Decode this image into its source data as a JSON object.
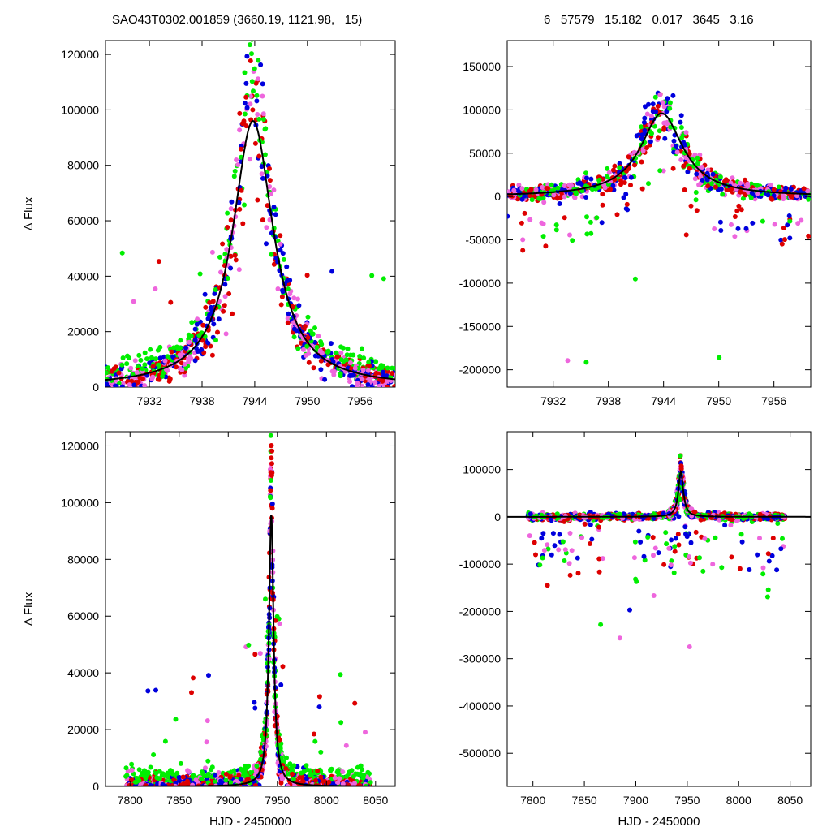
{
  "header": {
    "left": "SAO43T0302.001859 (3660.19, 1121.98,   15)",
    "right": "6   57579   15.182   0.017   3645   3.16"
  },
  "colors": {
    "series": [
      "#0000dd",
      "#dd0000",
      "#ee66dd",
      "#00ee00"
    ],
    "model": "#000000"
  },
  "chart_data": [
    {
      "id": "top-left",
      "type": "scatter",
      "title": "",
      "xlabel": "",
      "ylabel": "Δ Flux",
      "xlim": [
        7927,
        7960
      ],
      "ylim": [
        0,
        125000
      ],
      "xticks": [
        7932,
        7938,
        7944,
        7950,
        7956
      ],
      "yticks": [
        0,
        20000,
        40000,
        60000,
        80000,
        100000,
        120000
      ],
      "grid": false,
      "model": {
        "type": "lorentzian",
        "t0": 7943.8,
        "amplitude": 96000,
        "width": 2.8
      }
    },
    {
      "id": "top-right",
      "type": "scatter",
      "title": "",
      "xlabel": "",
      "ylabel": "",
      "xlim": [
        7927,
        7960
      ],
      "ylim": [
        -220000,
        180000
      ],
      "xticks": [
        7932,
        7938,
        7944,
        7950,
        7956
      ],
      "yticks": [
        -200000,
        -150000,
        -100000,
        -50000,
        0,
        50000,
        100000,
        150000
      ],
      "grid": false,
      "model": {
        "type": "lorentzian",
        "t0": 7943.8,
        "amplitude": 96000,
        "width": 2.8
      }
    },
    {
      "id": "bottom-left",
      "type": "scatter",
      "title": "",
      "xlabel": "HJD - 2450000",
      "ylabel": "Δ Flux",
      "xlim": [
        7775,
        8070
      ],
      "ylim": [
        0,
        125000
      ],
      "xticks": [
        7800,
        7850,
        7900,
        7950,
        8000,
        8050
      ],
      "yticks": [
        0,
        20000,
        40000,
        60000,
        80000,
        100000,
        120000
      ],
      "grid": false,
      "model": {
        "type": "lorentzian",
        "t0": 7943.8,
        "amplitude": 96000,
        "width": 2.8
      }
    },
    {
      "id": "bottom-right",
      "type": "scatter",
      "title": "",
      "xlabel": "HJD - 2450000",
      "ylabel": "",
      "xlim": [
        7775,
        8070
      ],
      "ylim": [
        -570000,
        180000
      ],
      "xticks": [
        7800,
        7850,
        7900,
        7950,
        8000,
        8050
      ],
      "yticks": [
        -500000,
        -400000,
        -300000,
        -200000,
        -100000,
        0,
        100000
      ],
      "grid": false,
      "model": {
        "type": "lorentzian",
        "t0": 7943.8,
        "amplitude": 96000,
        "width": 2.8
      }
    }
  ]
}
